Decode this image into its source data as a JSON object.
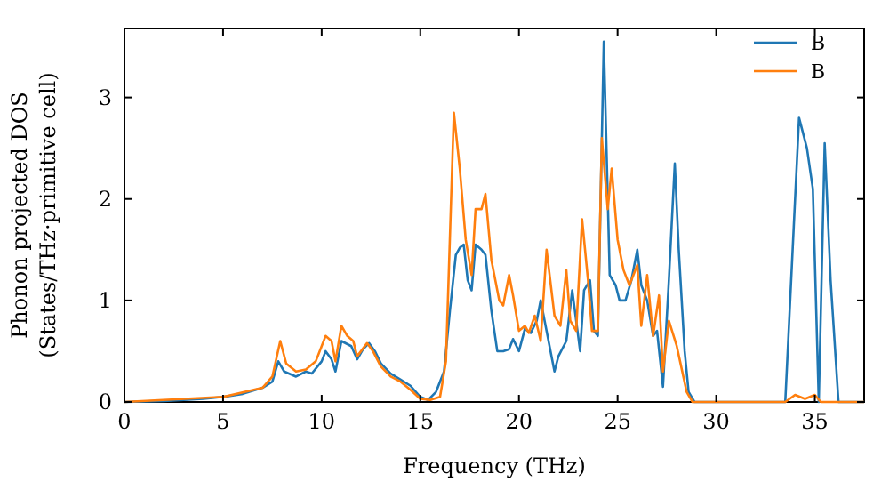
{
  "chart_data": {
    "type": "line",
    "xlabel": "Frequency (THz)",
    "ylabel": "Phonon projected DOS\n(States/THz·primitive cell)",
    "xlim": [
      0,
      37.5
    ],
    "ylim": [
      0,
      3.68
    ],
    "xticks": [
      0,
      5,
      10,
      15,
      20,
      25,
      30,
      35
    ],
    "yticks": [
      0,
      1,
      2,
      3
    ],
    "legend": "top right",
    "grid": false,
    "series": [
      {
        "name": "B",
        "color": "#1f77b4",
        "x": [
          0,
          2,
          4,
          5,
          6,
          7,
          7.5,
          7.8,
          8.1,
          8.7,
          9.2,
          9.5,
          10,
          10.2,
          10.5,
          10.7,
          11,
          11.5,
          11.8,
          12.1,
          12.4,
          12.7,
          13,
          13.5,
          14,
          14.5,
          15,
          15.4,
          15.8,
          16.2,
          16.5,
          16.8,
          17,
          17.2,
          17.4,
          17.6,
          17.8,
          18.1,
          18.3,
          18.6,
          18.9,
          19.2,
          19.5,
          19.7,
          20,
          20.3,
          20.6,
          20.9,
          21.1,
          21.3,
          21.6,
          21.8,
          22,
          22.4,
          22.7,
          22.9,
          23.1,
          23.3,
          23.6,
          23.8,
          24,
          24.3,
          24.6,
          24.9,
          25.1,
          25.4,
          25.7,
          26,
          26.2,
          26.5,
          26.8,
          27,
          27.3,
          27.6,
          27.9,
          28.1,
          28.4,
          28.6,
          28.9,
          30,
          33.5,
          34.2,
          34.6,
          34.9,
          35.2,
          35.5,
          35.8,
          36.2,
          37.5
        ],
        "values": [
          0,
          0.01,
          0.03,
          0.05,
          0.08,
          0.14,
          0.2,
          0.4,
          0.3,
          0.25,
          0.3,
          0.28,
          0.4,
          0.5,
          0.42,
          0.3,
          0.6,
          0.55,
          0.42,
          0.52,
          0.58,
          0.5,
          0.38,
          0.28,
          0.22,
          0.16,
          0.05,
          0.02,
          0.1,
          0.3,
          0.9,
          1.45,
          1.52,
          1.55,
          1.2,
          1.1,
          1.55,
          1.5,
          1.45,
          0.9,
          0.5,
          0.5,
          0.52,
          0.62,
          0.5,
          0.72,
          0.68,
          0.8,
          1.0,
          0.8,
          0.5,
          0.3,
          0.45,
          0.6,
          1.1,
          0.8,
          0.5,
          1.1,
          1.2,
          0.7,
          0.65,
          3.55,
          1.25,
          1.15,
          1.0,
          1.0,
          1.2,
          1.5,
          1.15,
          1.0,
          0.65,
          0.7,
          0.15,
          1.2,
          2.35,
          1.5,
          0.5,
          0.1,
          0,
          0,
          0,
          2.8,
          2.5,
          2.1,
          0,
          2.55,
          1.2,
          0,
          0
        ]
      },
      {
        "name": "B",
        "color": "#ff7f0e",
        "x": [
          0,
          5,
          7,
          7.5,
          7.9,
          8.2,
          8.7,
          9.2,
          9.7,
          10.2,
          10.5,
          10.7,
          11,
          11.3,
          11.6,
          11.8,
          12.3,
          12.6,
          13,
          13.5,
          14,
          14.5,
          15,
          15.5,
          16,
          16.3,
          16.7,
          17,
          17.3,
          17.6,
          17.8,
          18.1,
          18.3,
          18.6,
          19,
          19.2,
          19.5,
          19.7,
          20,
          20.3,
          20.5,
          20.8,
          21.1,
          21.4,
          21.8,
          22.1,
          22.4,
          22.6,
          22.9,
          23.2,
          23.5,
          23.7,
          24,
          24.2,
          24.5,
          24.7,
          25,
          25.3,
          25.6,
          26,
          26.2,
          26.5,
          26.8,
          27.1,
          27.3,
          27.6,
          28,
          28.5,
          28.8,
          33.5,
          34,
          34.5,
          35,
          35.3,
          37.5
        ],
        "values": [
          0,
          0.05,
          0.14,
          0.25,
          0.6,
          0.38,
          0.3,
          0.32,
          0.4,
          0.65,
          0.6,
          0.4,
          0.75,
          0.65,
          0.6,
          0.45,
          0.58,
          0.5,
          0.35,
          0.25,
          0.2,
          0.12,
          0.03,
          0.02,
          0.05,
          0.4,
          2.85,
          2.3,
          1.6,
          1.25,
          1.9,
          1.9,
          2.05,
          1.4,
          1.0,
          0.95,
          1.25,
          1.05,
          0.7,
          0.75,
          0.68,
          0.85,
          0.6,
          1.5,
          0.85,
          0.75,
          1.3,
          0.8,
          0.7,
          1.8,
          1.2,
          0.7,
          0.7,
          2.6,
          1.9,
          2.3,
          1.6,
          1.3,
          1.15,
          1.35,
          0.75,
          1.25,
          0.65,
          1.05,
          0.3,
          0.8,
          0.55,
          0.1,
          0,
          0,
          0.07,
          0.03,
          0.07,
          0,
          0
        ]
      }
    ]
  }
}
